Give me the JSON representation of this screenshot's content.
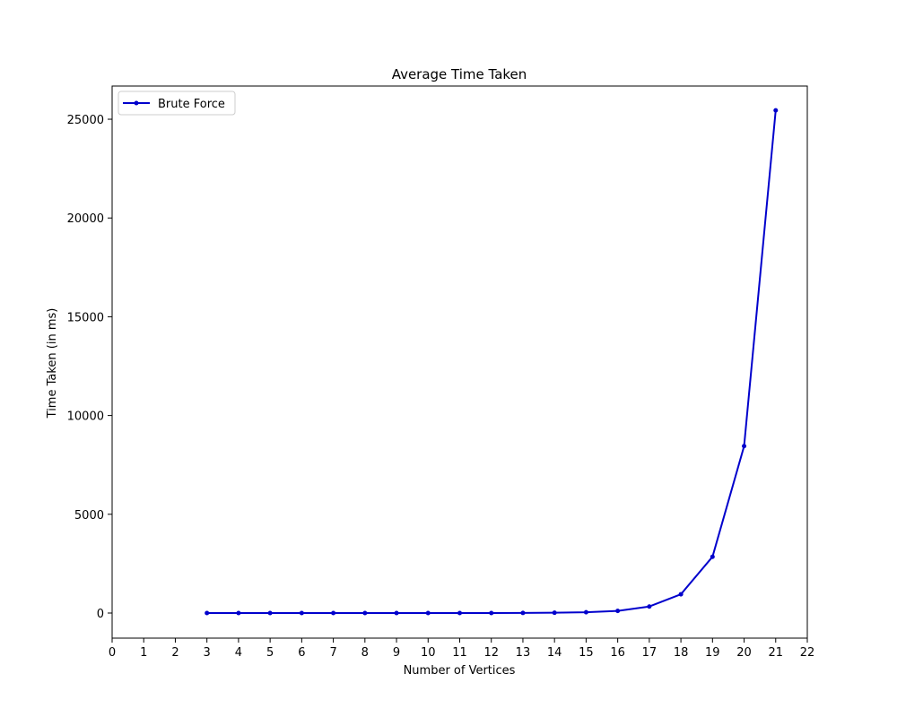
{
  "chart_data": {
    "type": "line",
    "title": "Average Time Taken",
    "xlabel": "Number of Vertices",
    "ylabel": "Time Taken (in ms)",
    "xlim": [
      0,
      22
    ],
    "ylim": [
      -1270,
      26680
    ],
    "xticks": [
      0,
      1,
      2,
      3,
      4,
      5,
      6,
      7,
      8,
      9,
      10,
      11,
      12,
      13,
      14,
      15,
      16,
      17,
      18,
      19,
      20,
      21,
      22
    ],
    "yticks": [
      0,
      5000,
      10000,
      15000,
      20000,
      25000
    ],
    "grid": false,
    "legend": {
      "position": "top-left"
    },
    "series": [
      {
        "name": "Brute Force",
        "color": "#0000cc",
        "marker": "circle",
        "x": [
          3,
          4,
          5,
          6,
          7,
          8,
          9,
          10,
          11,
          12,
          13,
          14,
          15,
          16,
          17,
          18,
          19,
          20,
          21
        ],
        "y": [
          0,
          0,
          0,
          0,
          0,
          0,
          0,
          0,
          1,
          2,
          5,
          15,
          40,
          110,
          330,
          950,
          2850,
          8450,
          25450
        ]
      }
    ]
  }
}
